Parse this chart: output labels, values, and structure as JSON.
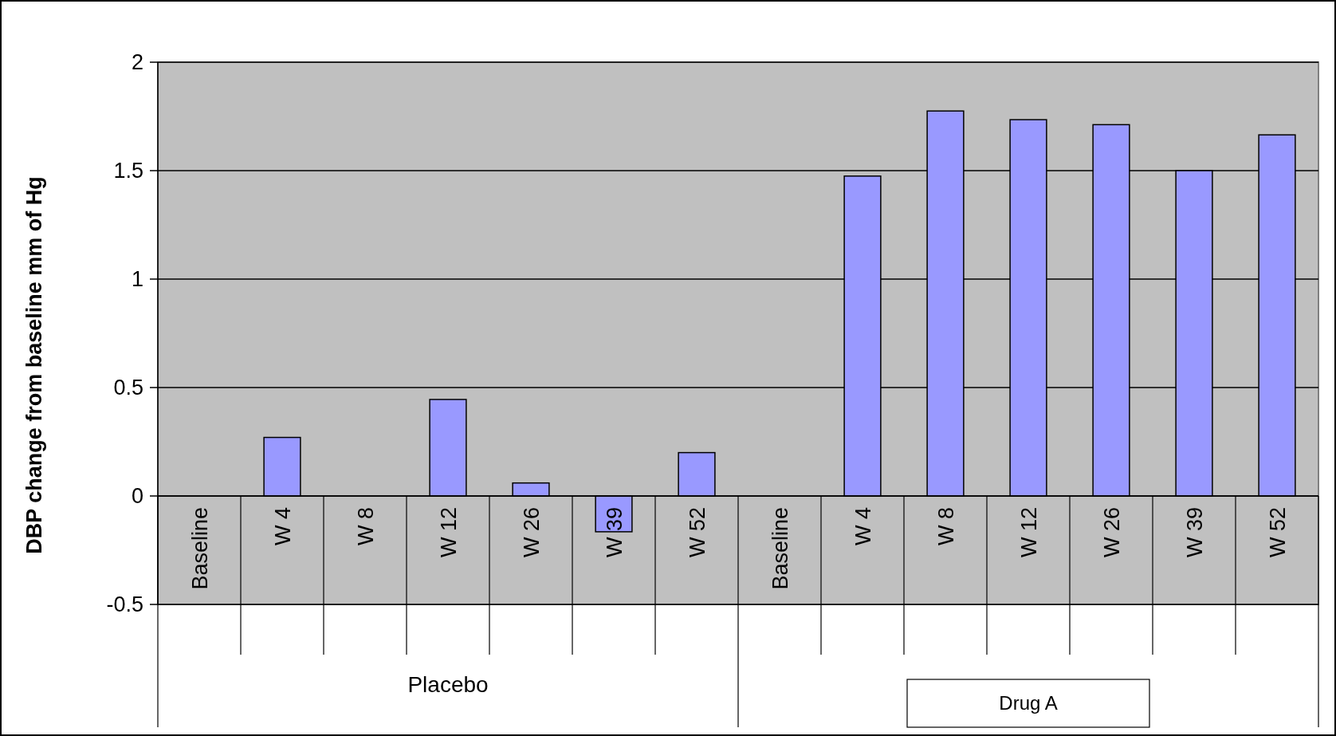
{
  "chart_data": {
    "type": "bar",
    "ylabel": "DBP change from baseline mm of Hg",
    "categories": [
      "Baseline",
      "W 4",
      "W 8",
      "W 12",
      "W 26",
      "W 39",
      "W 52",
      "Baseline",
      "W 4",
      "W 8",
      "W 12",
      "W 26",
      "W 39",
      "W 52"
    ],
    "values": [
      0,
      0.27,
      0,
      0.445,
      0.06,
      -0.165,
      0.2,
      0,
      1.475,
      1.775,
      1.735,
      1.712,
      1.5,
      1.665
    ],
    "color": "#9999ff",
    "ylim": [
      -0.5,
      2
    ],
    "yticks": [
      -0.5,
      0,
      0.5,
      1,
      1.5,
      2
    ],
    "grid": "y",
    "annotations": [
      "Placebo",
      "Drug A"
    ]
  }
}
